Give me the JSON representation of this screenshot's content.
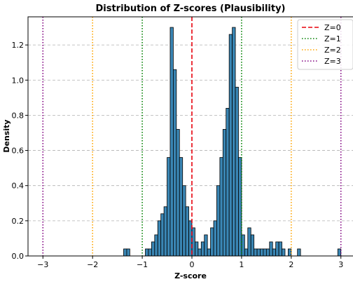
{
  "chart_data": {
    "type": "bar",
    "title": "Distribution of Z-scores (Plausibility)",
    "xlabel": "Z-score",
    "ylabel": "Density",
    "xlim": [
      -3.3,
      3.3
    ],
    "ylim": [
      0,
      1.36
    ],
    "xticks": [
      -3,
      -2,
      -1,
      0,
      1,
      2,
      3
    ],
    "xtick_labels": [
      "−3",
      "−2",
      "−1",
      "0",
      "1",
      "2",
      "3"
    ],
    "yticks": [
      0.0,
      0.2,
      0.4,
      0.6,
      0.8,
      1.0,
      1.2
    ],
    "ytick_labels": [
      "0.0",
      "0.2",
      "0.4",
      "0.6",
      "0.8",
      "1.0",
      "1.2"
    ],
    "grid": "y, dashed",
    "legend_position": "top-right",
    "bin_width": 0.0625,
    "bar_color": "#3a86b4",
    "bins": [
      {
        "x0": -1.375,
        "value": 0.04
      },
      {
        "x0": -1.3125,
        "value": 0.04
      },
      {
        "x0": -0.9375,
        "value": 0.04
      },
      {
        "x0": -0.875,
        "value": 0.04
      },
      {
        "x0": -0.8125,
        "value": 0.08
      },
      {
        "x0": -0.75,
        "value": 0.12
      },
      {
        "x0": -0.6875,
        "value": 0.2
      },
      {
        "x0": -0.625,
        "value": 0.24
      },
      {
        "x0": -0.5625,
        "value": 0.28
      },
      {
        "x0": -0.5,
        "value": 0.56
      },
      {
        "x0": -0.4375,
        "value": 1.3
      },
      {
        "x0": -0.375,
        "value": 1.06
      },
      {
        "x0": -0.3125,
        "value": 0.72
      },
      {
        "x0": -0.25,
        "value": 0.56
      },
      {
        "x0": -0.1875,
        "value": 0.4
      },
      {
        "x0": -0.125,
        "value": 0.28
      },
      {
        "x0": -0.0625,
        "value": 0.2
      },
      {
        "x0": 0.0,
        "value": 0.16
      },
      {
        "x0": 0.0625,
        "value": 0.08
      },
      {
        "x0": 0.125,
        "value": 0.04
      },
      {
        "x0": 0.1875,
        "value": 0.08
      },
      {
        "x0": 0.25,
        "value": 0.12
      },
      {
        "x0": 0.3125,
        "value": 0.04
      },
      {
        "x0": 0.375,
        "value": 0.16
      },
      {
        "x0": 0.4375,
        "value": 0.2
      },
      {
        "x0": 0.5,
        "value": 0.4
      },
      {
        "x0": 0.5625,
        "value": 0.56
      },
      {
        "x0": 0.625,
        "value": 0.72
      },
      {
        "x0": 0.6875,
        "value": 0.84
      },
      {
        "x0": 0.75,
        "value": 1.26
      },
      {
        "x0": 0.8125,
        "value": 1.3
      },
      {
        "x0": 0.875,
        "value": 0.96
      },
      {
        "x0": 0.9375,
        "value": 0.56
      },
      {
        "x0": 1.0,
        "value": 0.12
      },
      {
        "x0": 1.0625,
        "value": 0.04
      },
      {
        "x0": 1.125,
        "value": 0.16
      },
      {
        "x0": 1.1875,
        "value": 0.12
      },
      {
        "x0": 1.25,
        "value": 0.04
      },
      {
        "x0": 1.3125,
        "value": 0.04
      },
      {
        "x0": 1.375,
        "value": 0.04
      },
      {
        "x0": 1.4375,
        "value": 0.04
      },
      {
        "x0": 1.5,
        "value": 0.04
      },
      {
        "x0": 1.5625,
        "value": 0.08
      },
      {
        "x0": 1.625,
        "value": 0.04
      },
      {
        "x0": 1.6875,
        "value": 0.08
      },
      {
        "x0": 1.75,
        "value": 0.08
      },
      {
        "x0": 1.8125,
        "value": 0.04
      },
      {
        "x0": 1.9375,
        "value": 0.04
      },
      {
        "x0": 2.125,
        "value": 0.04
      },
      {
        "x0": 2.9375,
        "value": 0.04
      }
    ],
    "reference_lines": [
      {
        "name": "Z=0",
        "x": [
          0
        ],
        "color": "#e8000b",
        "style": "dashed"
      },
      {
        "name": "Z=1",
        "x": [
          -1,
          1
        ],
        "color": "#008000",
        "style": "dotted"
      },
      {
        "name": "Z=2",
        "x": [
          -2,
          2
        ],
        "color": "#ffa500",
        "style": "dotted"
      },
      {
        "name": "Z=3",
        "x": [
          -3,
          3
        ],
        "color": "#800080",
        "style": "dotted"
      }
    ]
  }
}
